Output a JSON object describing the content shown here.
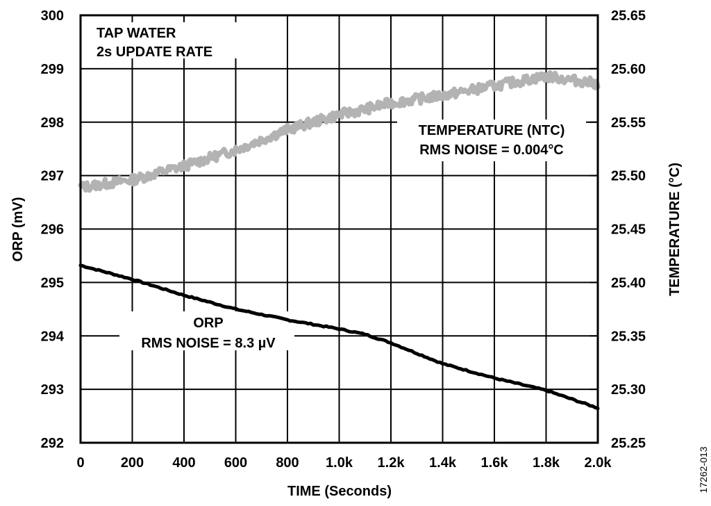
{
  "figure": {
    "code": "17262-013"
  },
  "annotations": {
    "top_left_line1": "TAP WATER",
    "top_left_line2": "2s UPDATE RATE",
    "temp_line1": "TEMPERATURE (NTC)",
    "temp_line2": "RMS NOISE = 0.004°C",
    "orp_line1": "ORP",
    "orp_line2": "RMS NOISE = 8.3 µV"
  },
  "axes": {
    "x_title": "TIME (Seconds)",
    "y_left_title": "ORP (mV)",
    "y_right_title": "TEMPERATURE (°C)",
    "x_ticks": [
      "0",
      "200",
      "400",
      "600",
      "800",
      "1.0k",
      "1.2k",
      "1.4k",
      "1.6k",
      "1.8k",
      "2.0k"
    ],
    "y_left_ticks": [
      "292",
      "293",
      "294",
      "295",
      "296",
      "297",
      "298",
      "299",
      "300"
    ],
    "y_right_ticks": [
      "25.25",
      "25.30",
      "25.35",
      "25.40",
      "25.45",
      "25.50",
      "25.55",
      "25.60",
      "25.65"
    ]
  },
  "colors": {
    "orp_series": "#000000",
    "temperature_series": "#b3b3b3",
    "grid": "#000000"
  },
  "chart_data": {
    "type": "line",
    "title": "",
    "xlabel": "TIME (Seconds)",
    "ylabel": "ORP (mV)",
    "ylabel_right": "TEMPERATURE (°C)",
    "xlim": [
      0,
      2000
    ],
    "ylim": [
      292,
      300
    ],
    "ylim_right": [
      25.25,
      25.65
    ],
    "grid": true,
    "x_tick_labels": [
      "0",
      "200",
      "400",
      "600",
      "800",
      "1.0k",
      "1.2k",
      "1.4k",
      "1.6k",
      "1.8k",
      "2.0k"
    ],
    "annotations": [
      "TAP WATER",
      "2s UPDATE RATE",
      "TEMPERATURE (NTC) RMS NOISE = 0.004°C",
      "ORP RMS NOISE = 8.3 µV"
    ],
    "x": [
      0,
      200,
      400,
      600,
      800,
      1000,
      1100,
      1200,
      1400,
      1600,
      1800,
      2000
    ],
    "series": [
      {
        "name": "ORP",
        "axis": "left",
        "unit": "mV",
        "color": "#000000",
        "values": [
          295.32,
          295.06,
          294.76,
          294.5,
          294.3,
          294.13,
          294.03,
          293.87,
          293.48,
          293.21,
          292.98,
          292.65
        ]
      },
      {
        "name": "TEMPERATURE (NTC)",
        "axis": "right",
        "unit": "°C",
        "color": "#b3b3b3",
        "values": [
          25.489,
          25.496,
          25.509,
          25.524,
          25.543,
          25.557,
          25.562,
          25.568,
          25.575,
          25.584,
          25.593,
          25.586
        ]
      }
    ]
  }
}
